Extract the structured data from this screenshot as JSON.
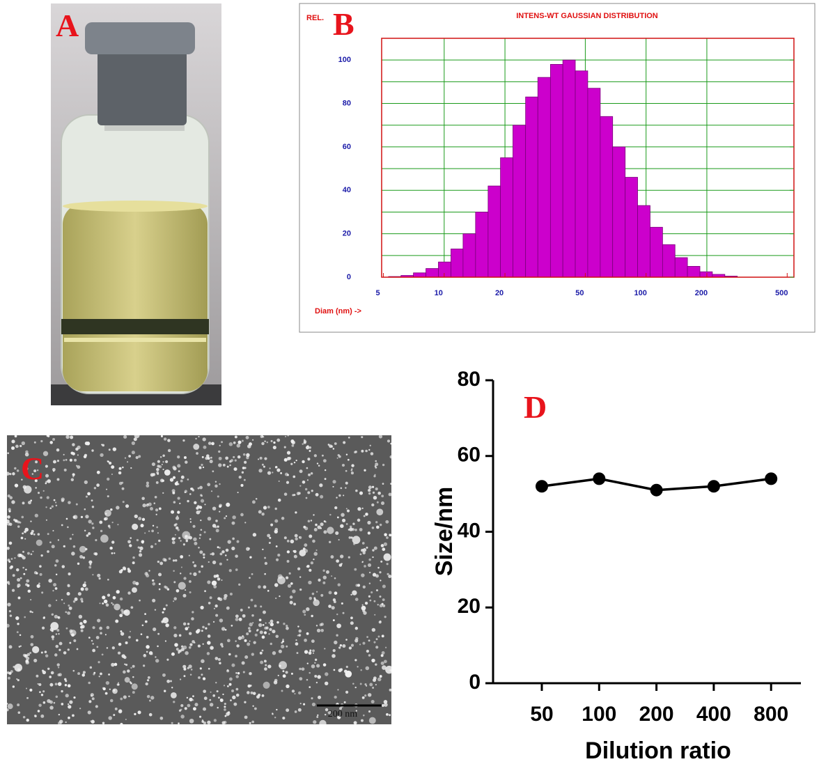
{
  "photo": {
    "panel_label": "A"
  },
  "micrograph": {
    "panel_label": "C",
    "scale_bar": "200 nm"
  },
  "chart_data": [
    {
      "type": "histogram",
      "panel_label": "B",
      "title": "INTENS-WT GAUSSIAN DISTRIBUTION",
      "y_label": "REL.",
      "x_label": "Diam (nm) ->",
      "x_log": true,
      "color": "#cc00cc",
      "bins": [
        5.3,
        6.11,
        7.04,
        8.12,
        9.36,
        10.8,
        12.4,
        14.3,
        16.5,
        19.0,
        21.9,
        25.3,
        29.1,
        33.6,
        38.7,
        44.6,
        51.4,
        59.3,
        68.3,
        78.8,
        90.8,
        104.7,
        120.7,
        139.1,
        160.3,
        184.8,
        213,
        245.6,
        283.1
      ],
      "values": [
        0.3,
        0.8,
        2,
        4,
        7,
        13,
        20,
        30,
        42,
        55,
        70,
        83,
        92,
        98,
        100,
        95,
        87,
        74,
        60,
        46,
        33,
        23,
        15,
        9,
        5,
        2.5,
        1.3,
        0.5
      ],
      "xlim": [
        4.9,
        540
      ],
      "ylim": [
        0,
        110
      ],
      "xticks": [
        5,
        10,
        20,
        50,
        100,
        200,
        500
      ],
      "yticks": [
        0,
        20,
        40,
        60,
        80,
        100
      ],
      "xgrid": [
        10,
        20,
        50,
        100,
        200
      ],
      "ygrid": [
        10,
        20,
        30,
        40,
        50,
        60,
        70,
        80,
        90,
        100
      ]
    },
    {
      "type": "line",
      "panel_label": "D",
      "x_label": "Dilution ratio",
      "y_label": "Size/nm",
      "color": "#000000",
      "categories": [
        "50",
        "100",
        "200",
        "400",
        "800"
      ],
      "values": [
        52,
        54,
        51,
        52,
        54
      ],
      "ylim": [
        0,
        80
      ],
      "yticks": [
        0,
        20,
        40,
        60,
        80
      ]
    }
  ]
}
